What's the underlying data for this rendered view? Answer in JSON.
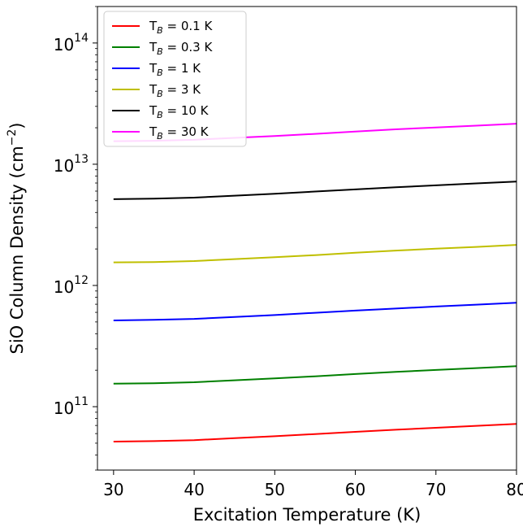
{
  "chart_data": {
    "type": "line",
    "xlabel": "Excitation Temperature (K)",
    "ylabel": "SiO Column Density (cm",
    "ylabel_sup": "−2",
    "ylabel_close": ")",
    "xlim": [
      28,
      80
    ],
    "ylim": [
      30000000000.0,
      200000000000000.0
    ],
    "yscale": "log",
    "grid": false,
    "legend_position": "top-left",
    "x_ticks": [
      30,
      40,
      50,
      60,
      70,
      80
    ],
    "x_tick_labels": [
      "30",
      "40",
      "50",
      "60",
      "70",
      "80"
    ],
    "y_ticks": [
      {
        "base": "10",
        "exp": "11",
        "value": 100000000000.0
      },
      {
        "base": "10",
        "exp": "12",
        "value": 1000000000000.0
      },
      {
        "base": "10",
        "exp": "13",
        "value": 10000000000000.0
      },
      {
        "base": "10",
        "exp": "14",
        "value": 100000000000000.0
      }
    ],
    "x": [
      30,
      35,
      40,
      45,
      50,
      55,
      60,
      65,
      70,
      75,
      80
    ],
    "series": [
      {
        "name": "T_B = 0.1 K",
        "label_main": "T",
        "label_sub": "B",
        "label_rest": " = 0.1 K",
        "color": "#ff0000",
        "values": [
          51500000000.0,
          52000000000.0,
          53000000000.0,
          55000000000.0,
          57000000000.0,
          59500000000.0,
          62000000000.0,
          64500000000.0,
          67000000000.0,
          69500000000.0,
          72000000000.0
        ]
      },
      {
        "name": "T_B = 0.3 K",
        "label_main": "T",
        "label_sub": "B",
        "label_rest": " = 0.3 K",
        "color": "#008000",
        "values": [
          155000000000.0,
          156000000000.0,
          159000000000.0,
          165000000000.0,
          171000000000.0,
          178000000000.0,
          186000000000.0,
          194000000000.0,
          201000000000.0,
          208000000000.0,
          216000000000.0
        ]
      },
      {
        "name": "T_B = 1 K",
        "label_main": "T",
        "label_sub": "B",
        "label_rest": " = 1 K",
        "color": "#0000ff",
        "values": [
          515000000000.0,
          520000000000.0,
          530000000000.0,
          550000000000.0,
          570000000000.0,
          595000000000.0,
          620000000000.0,
          645000000000.0,
          670000000000.0,
          695000000000.0,
          720000000000.0
        ]
      },
      {
        "name": "T_B = 3 K",
        "label_main": "T",
        "label_sub": "B",
        "label_rest": " = 3 K",
        "color": "#bfbf00",
        "values": [
          1550000000000.0,
          1560000000000.0,
          1590000000000.0,
          1650000000000.0,
          1710000000000.0,
          1780000000000.0,
          1860000000000.0,
          1940000000000.0,
          2010000000000.0,
          2080000000000.0,
          2160000000000.0
        ]
      },
      {
        "name": "T_B = 10 K",
        "label_main": "T",
        "label_sub": "B",
        "label_rest": " = 10 K",
        "color": "#000000",
        "values": [
          5150000000000.0,
          5200000000000.0,
          5300000000000.0,
          5500000000000.0,
          5700000000000.0,
          5950000000000.0,
          6200000000000.0,
          6450000000000.0,
          6700000000000.0,
          6950000000000.0,
          7200000000000.0
        ]
      },
      {
        "name": "T_B = 30 K",
        "label_main": "T",
        "label_sub": "B",
        "label_rest": " = 30 K",
        "color": "#ff00ff",
        "values": [
          15500000000000.0,
          15600000000000.0,
          15900000000000.0,
          16500000000000.0,
          17100000000000.0,
          17800000000000.0,
          18600000000000.0,
          19400000000000.0,
          20100000000000.0,
          20800000000000.0,
          21600000000000.0
        ]
      }
    ]
  }
}
